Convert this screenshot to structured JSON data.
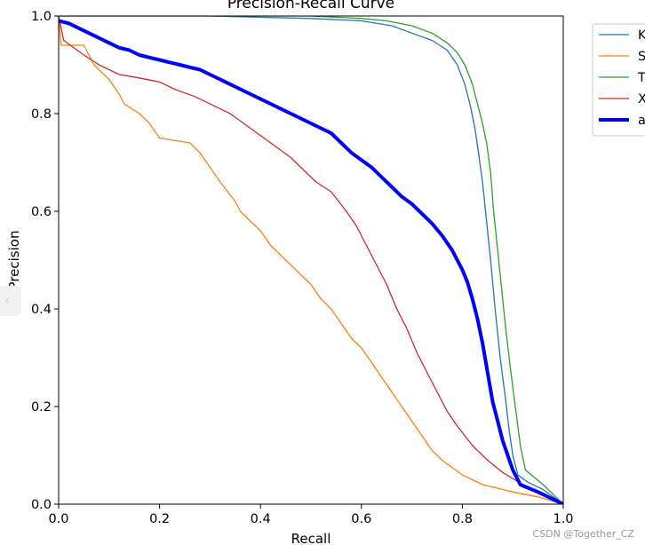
{
  "chart_data": {
    "type": "line",
    "title": "Precision-Recall Curve",
    "xlabel": "Recall",
    "ylabel": "Precision",
    "xlim": [
      0,
      1
    ],
    "ylim": [
      0,
      1
    ],
    "xticks": [
      "0.0",
      "0.2",
      "0.4",
      "0.6",
      "0.8",
      "1.0"
    ],
    "yticks": [
      "0.0",
      "0.2",
      "0.4",
      "0.6",
      "0.8",
      "1.0"
    ],
    "grid": false,
    "legend_position": "outside-top-right",
    "series": [
      {
        "name": "K",
        "color": "#1f77b4",
        "width": "thin",
        "points": [
          [
            0,
            1.0
          ],
          [
            0.3,
            1.0
          ],
          [
            0.5,
            0.995
          ],
          [
            0.6,
            0.99
          ],
          [
            0.66,
            0.98
          ],
          [
            0.7,
            0.965
          ],
          [
            0.74,
            0.95
          ],
          [
            0.77,
            0.93
          ],
          [
            0.79,
            0.9
          ],
          [
            0.805,
            0.86
          ],
          [
            0.815,
            0.82
          ],
          [
            0.825,
            0.77
          ],
          [
            0.832,
            0.72
          ],
          [
            0.84,
            0.66
          ],
          [
            0.848,
            0.58
          ],
          [
            0.856,
            0.5
          ],
          [
            0.865,
            0.4
          ],
          [
            0.875,
            0.3
          ],
          [
            0.885,
            0.22
          ],
          [
            0.893,
            0.15
          ],
          [
            0.9,
            0.1
          ],
          [
            0.91,
            0.06
          ],
          [
            0.93,
            0.045
          ],
          [
            0.96,
            0.03
          ],
          [
            1.0,
            0.0
          ]
        ]
      },
      {
        "name": "S",
        "color": "#ff7f0e",
        "width": "thin",
        "points": [
          [
            0,
            1.0
          ],
          [
            0.005,
            0.94
          ],
          [
            0.05,
            0.94
          ],
          [
            0.07,
            0.9
          ],
          [
            0.1,
            0.87
          ],
          [
            0.12,
            0.84
          ],
          [
            0.13,
            0.82
          ],
          [
            0.16,
            0.8
          ],
          [
            0.18,
            0.78
          ],
          [
            0.2,
            0.75
          ],
          [
            0.26,
            0.74
          ],
          [
            0.28,
            0.72
          ],
          [
            0.3,
            0.69
          ],
          [
            0.32,
            0.66
          ],
          [
            0.35,
            0.62
          ],
          [
            0.36,
            0.6
          ],
          [
            0.38,
            0.58
          ],
          [
            0.4,
            0.56
          ],
          [
            0.42,
            0.53
          ],
          [
            0.44,
            0.51
          ],
          [
            0.46,
            0.49
          ],
          [
            0.48,
            0.47
          ],
          [
            0.5,
            0.45
          ],
          [
            0.52,
            0.42
          ],
          [
            0.54,
            0.4
          ],
          [
            0.56,
            0.37
          ],
          [
            0.58,
            0.34
          ],
          [
            0.6,
            0.32
          ],
          [
            0.62,
            0.29
          ],
          [
            0.64,
            0.26
          ],
          [
            0.66,
            0.23
          ],
          [
            0.68,
            0.2
          ],
          [
            0.7,
            0.17
          ],
          [
            0.72,
            0.14
          ],
          [
            0.74,
            0.11
          ],
          [
            0.76,
            0.09
          ],
          [
            0.8,
            0.06
          ],
          [
            0.84,
            0.04
          ],
          [
            0.86,
            0.035
          ],
          [
            0.9,
            0.025
          ],
          [
            0.95,
            0.015
          ],
          [
            1.0,
            0.0
          ]
        ]
      },
      {
        "name": "T",
        "color": "#2ca02c",
        "width": "thin",
        "points": [
          [
            0,
            1.0
          ],
          [
            0.3,
            1.0
          ],
          [
            0.5,
            1.0
          ],
          [
            0.6,
            0.995
          ],
          [
            0.65,
            0.99
          ],
          [
            0.7,
            0.98
          ],
          [
            0.74,
            0.965
          ],
          [
            0.77,
            0.945
          ],
          [
            0.79,
            0.925
          ],
          [
            0.805,
            0.9
          ],
          [
            0.82,
            0.86
          ],
          [
            0.83,
            0.82
          ],
          [
            0.84,
            0.78
          ],
          [
            0.848,
            0.74
          ],
          [
            0.856,
            0.68
          ],
          [
            0.862,
            0.6
          ],
          [
            0.87,
            0.52
          ],
          [
            0.878,
            0.44
          ],
          [
            0.886,
            0.36
          ],
          [
            0.895,
            0.28
          ],
          [
            0.905,
            0.2
          ],
          [
            0.915,
            0.12
          ],
          [
            0.925,
            0.07
          ],
          [
            0.96,
            0.04
          ],
          [
            1.0,
            0.0
          ]
        ]
      },
      {
        "name": "X",
        "color": "#d62728",
        "width": "thin",
        "points": [
          [
            0,
            1.0
          ],
          [
            0.01,
            0.95
          ],
          [
            0.05,
            0.92
          ],
          [
            0.08,
            0.9
          ],
          [
            0.12,
            0.88
          ],
          [
            0.15,
            0.875
          ],
          [
            0.2,
            0.865
          ],
          [
            0.23,
            0.85
          ],
          [
            0.27,
            0.835
          ],
          [
            0.31,
            0.815
          ],
          [
            0.34,
            0.8
          ],
          [
            0.38,
            0.77
          ],
          [
            0.42,
            0.74
          ],
          [
            0.46,
            0.71
          ],
          [
            0.49,
            0.68
          ],
          [
            0.51,
            0.66
          ],
          [
            0.54,
            0.64
          ],
          [
            0.57,
            0.6
          ],
          [
            0.59,
            0.57
          ],
          [
            0.61,
            0.53
          ],
          [
            0.63,
            0.49
          ],
          [
            0.65,
            0.45
          ],
          [
            0.67,
            0.4
          ],
          [
            0.69,
            0.36
          ],
          [
            0.71,
            0.31
          ],
          [
            0.73,
            0.27
          ],
          [
            0.75,
            0.23
          ],
          [
            0.77,
            0.19
          ],
          [
            0.79,
            0.16
          ],
          [
            0.82,
            0.12
          ],
          [
            0.85,
            0.09
          ],
          [
            0.88,
            0.065
          ],
          [
            0.92,
            0.04
          ],
          [
            0.96,
            0.02
          ],
          [
            1.0,
            0.0
          ]
        ]
      },
      {
        "name": "a",
        "color": "#0000ff",
        "width": "bold",
        "points": [
          [
            0,
            0.99
          ],
          [
            0.02,
            0.985
          ],
          [
            0.04,
            0.975
          ],
          [
            0.06,
            0.965
          ],
          [
            0.08,
            0.955
          ],
          [
            0.1,
            0.945
          ],
          [
            0.12,
            0.935
          ],
          [
            0.14,
            0.93
          ],
          [
            0.16,
            0.92
          ],
          [
            0.18,
            0.915
          ],
          [
            0.2,
            0.91
          ],
          [
            0.22,
            0.905
          ],
          [
            0.24,
            0.9
          ],
          [
            0.26,
            0.895
          ],
          [
            0.28,
            0.89
          ],
          [
            0.3,
            0.88
          ],
          [
            0.32,
            0.87
          ],
          [
            0.34,
            0.86
          ],
          [
            0.36,
            0.85
          ],
          [
            0.38,
            0.84
          ],
          [
            0.4,
            0.83
          ],
          [
            0.42,
            0.82
          ],
          [
            0.44,
            0.81
          ],
          [
            0.46,
            0.8
          ],
          [
            0.48,
            0.79
          ],
          [
            0.5,
            0.78
          ],
          [
            0.52,
            0.77
          ],
          [
            0.54,
            0.76
          ],
          [
            0.56,
            0.74
          ],
          [
            0.58,
            0.72
          ],
          [
            0.6,
            0.705
          ],
          [
            0.62,
            0.69
          ],
          [
            0.64,
            0.67
          ],
          [
            0.66,
            0.65
          ],
          [
            0.68,
            0.63
          ],
          [
            0.7,
            0.615
          ],
          [
            0.72,
            0.595
          ],
          [
            0.74,
            0.575
          ],
          [
            0.76,
            0.55
          ],
          [
            0.78,
            0.52
          ],
          [
            0.8,
            0.48
          ],
          [
            0.81,
            0.455
          ],
          [
            0.82,
            0.42
          ],
          [
            0.83,
            0.38
          ],
          [
            0.84,
            0.33
          ],
          [
            0.85,
            0.27
          ],
          [
            0.86,
            0.21
          ],
          [
            0.87,
            0.17
          ],
          [
            0.88,
            0.13
          ],
          [
            0.89,
            0.1
          ],
          [
            0.9,
            0.07
          ],
          [
            0.915,
            0.04
          ],
          [
            0.95,
            0.025
          ],
          [
            1.0,
            0.0
          ]
        ]
      }
    ]
  },
  "watermark": "CSDN @Together_CZ",
  "side_tab_icon": "‹"
}
